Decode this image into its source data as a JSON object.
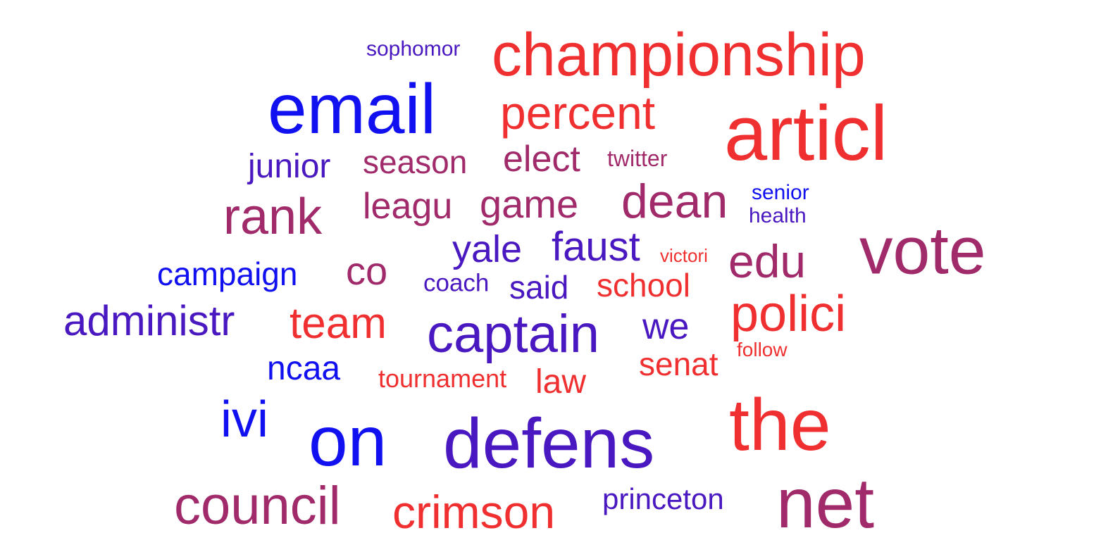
{
  "word_cloud": {
    "colors": {
      "blue": "#1010f0",
      "indigo": "#4a18c0",
      "violet": "#6a22a6",
      "purple": "#8e2a80",
      "magenta": "#a02a6a",
      "red": "#f03030"
    },
    "words": [
      {
        "text": "sophomor",
        "color": "indigo"
      },
      {
        "text": "championship",
        "color": "red"
      },
      {
        "text": "email",
        "color": "blue"
      },
      {
        "text": "percent",
        "color": "red"
      },
      {
        "text": "articl",
        "color": "red"
      },
      {
        "text": "junior",
        "color": "indigo"
      },
      {
        "text": "season",
        "color": "magenta"
      },
      {
        "text": "elect",
        "color": "magenta"
      },
      {
        "text": "twitter",
        "color": "magenta"
      },
      {
        "text": "rank",
        "color": "magenta"
      },
      {
        "text": "leagu",
        "color": "magenta"
      },
      {
        "text": "game",
        "color": "magenta"
      },
      {
        "text": "dean",
        "color": "magenta"
      },
      {
        "text": "senior",
        "color": "blue"
      },
      {
        "text": "health",
        "color": "indigo"
      },
      {
        "text": "vote",
        "color": "magenta"
      },
      {
        "text": "yale",
        "color": "indigo"
      },
      {
        "text": "faust",
        "color": "indigo"
      },
      {
        "text": "victori",
        "color": "red"
      },
      {
        "text": "edu",
        "color": "magenta"
      },
      {
        "text": "campaign",
        "color": "blue"
      },
      {
        "text": "co",
        "color": "magenta"
      },
      {
        "text": "coach",
        "color": "indigo"
      },
      {
        "text": "said",
        "color": "indigo"
      },
      {
        "text": "school",
        "color": "red"
      },
      {
        "text": "administr",
        "color": "indigo"
      },
      {
        "text": "team",
        "color": "red"
      },
      {
        "text": "captain",
        "color": "indigo"
      },
      {
        "text": "we",
        "color": "indigo"
      },
      {
        "text": "polici",
        "color": "red"
      },
      {
        "text": "follow",
        "color": "red"
      },
      {
        "text": "ncaa",
        "color": "blue"
      },
      {
        "text": "tournament",
        "color": "red"
      },
      {
        "text": "law",
        "color": "red"
      },
      {
        "text": "senat",
        "color": "red"
      },
      {
        "text": "ivi",
        "color": "blue"
      },
      {
        "text": "on",
        "color": "blue"
      },
      {
        "text": "defens",
        "color": "indigo"
      },
      {
        "text": "the",
        "color": "red"
      },
      {
        "text": "council",
        "color": "magenta"
      },
      {
        "text": "crimson",
        "color": "red"
      },
      {
        "text": "princeton",
        "color": "indigo"
      },
      {
        "text": "net",
        "color": "magenta"
      }
    ]
  }
}
